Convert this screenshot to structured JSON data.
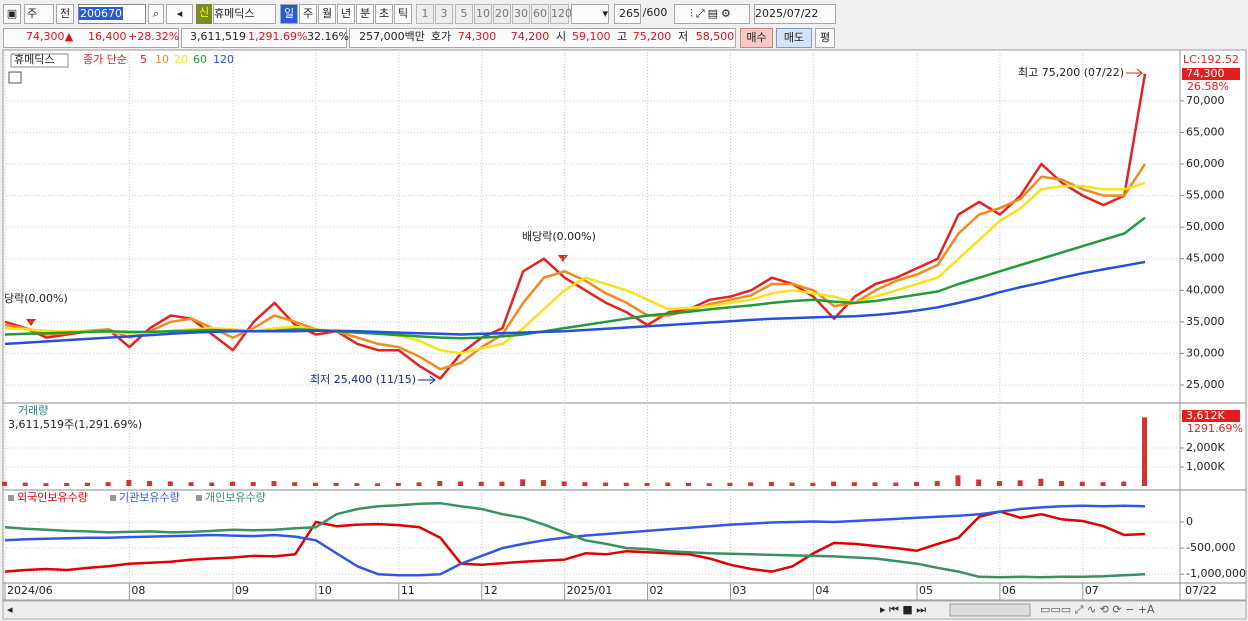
{
  "toolbar": {
    "period_type": "주",
    "prev": "전",
    "code": "200670",
    "new_badge": "신",
    "name": "휴메딕스",
    "periods": [
      "일",
      "주",
      "월",
      "년",
      "분",
      "초",
      "틱"
    ],
    "intervals": [
      "1",
      "3",
      "5",
      "10",
      "20",
      "30",
      "60",
      "120"
    ],
    "count": "265",
    "max_count": "/600",
    "date": "2025/07/22"
  },
  "info_bar": {
    "price": "74,300",
    "arrow": "▲",
    "change": "16,400",
    "change_pct": "+28.32%",
    "volume": "3,611,519",
    "volume_pct": "1,291.69%",
    "turnover": "32.16%",
    "amount": "257,000백만",
    "quote_label": "호가",
    "ask": "74,300",
    "bid": "74,200",
    "open_label": "시",
    "open": "59,100",
    "high_label": "고",
    "high": "75,200",
    "low_label": "저",
    "low": "58,500",
    "buy": "매수",
    "sell": "매도",
    "avg": "평"
  },
  "chart_data": [
    {
      "type": "line",
      "legend_name": "휴메딕스",
      "legend_label": "종가 단순",
      "series": [
        {
          "name": "5",
          "color": "#e3231f",
          "values": [
            35000,
            34000,
            32500,
            33000,
            33500,
            33800,
            31000,
            34000,
            36000,
            35500,
            33000,
            30500,
            35000,
            38000,
            34500,
            33000,
            33500,
            31500,
            30500,
            30500,
            28000,
            26000,
            30000,
            32500,
            34000,
            43000,
            45000,
            42000,
            40000,
            38000,
            36500,
            34500,
            36500,
            37000,
            38500,
            39000,
            40000,
            42000,
            41000,
            39000,
            35500,
            39000,
            41000,
            42000,
            43500,
            45000,
            52000,
            54000,
            52000,
            55000,
            60000,
            57000,
            55000,
            53500,
            55000,
            74300
          ]
        },
        {
          "name": "10",
          "color": "#f08a1c",
          "values": [
            34500,
            34000,
            33000,
            33200,
            33600,
            33800,
            32500,
            33500,
            35000,
            35500,
            34000,
            32500,
            34000,
            36000,
            35000,
            33800,
            33500,
            32500,
            31500,
            31000,
            29500,
            27500,
            28500,
            31000,
            33000,
            38000,
            42000,
            43000,
            41500,
            39500,
            38000,
            36000,
            36000,
            36800,
            37800,
            38500,
            39200,
            41000,
            41000,
            40000,
            37500,
            38000,
            40000,
            41500,
            42500,
            44000,
            49000,
            52000,
            53000,
            54500,
            58000,
            57500,
            56000,
            55000,
            55000,
            60000
          ]
        },
        {
          "name": "20",
          "color": "#f6e21c",
          "values": [
            34000,
            33800,
            33600,
            33500,
            33500,
            33400,
            33200,
            33300,
            33600,
            33800,
            34000,
            33800,
            33500,
            34000,
            34200,
            33800,
            33500,
            33500,
            33200,
            32800,
            32000,
            30500,
            30000,
            30800,
            31500,
            34000,
            37000,
            40000,
            42000,
            41000,
            40000,
            38500,
            37000,
            37200,
            37500,
            38000,
            38500,
            39500,
            40000,
            39500,
            39000,
            38000,
            39000,
            40000,
            41000,
            42000,
            45000,
            48000,
            51000,
            53000,
            56000,
            56500,
            56500,
            56000,
            56000,
            57000
          ]
        },
        {
          "name": "60",
          "color": "#239a3a",
          "values": [
            33000,
            33100,
            33200,
            33300,
            33400,
            33500,
            33400,
            33400,
            33500,
            33600,
            33700,
            33600,
            33500,
            33600,
            33800,
            33700,
            33500,
            33300,
            33100,
            32900,
            32700,
            32500,
            32400,
            32500,
            32700,
            33000,
            33500,
            34000,
            34500,
            35000,
            35500,
            36000,
            36300,
            36600,
            37000,
            37300,
            37600,
            38000,
            38300,
            38500,
            38200,
            38000,
            38300,
            38800,
            39300,
            39800,
            41000,
            42000,
            43000,
            44000,
            45000,
            46000,
            47000,
            48000,
            49000,
            51500
          ]
        },
        {
          "name": "120",
          "color": "#2452d6",
          "values": [
            31500,
            31700,
            31900,
            32100,
            32300,
            32500,
            32700,
            32900,
            33100,
            33300,
            33400,
            33500,
            33500,
            33500,
            33500,
            33600,
            33600,
            33500,
            33400,
            33300,
            33200,
            33100,
            33000,
            33100,
            33200,
            33300,
            33400,
            33500,
            33700,
            33900,
            34100,
            34300,
            34500,
            34700,
            34900,
            35100,
            35300,
            35500,
            35600,
            35700,
            35800,
            35900,
            36100,
            36400,
            36800,
            37300,
            38000,
            38800,
            39700,
            40500,
            41200,
            42000,
            42700,
            43300,
            43900,
            44500
          ]
        }
      ],
      "ylim": [
        22300,
        77750
      ],
      "yticks": [
        {
          "value": 25000,
          "label": "25,000"
        },
        {
          "value": 30000,
          "label": "30,000"
        },
        {
          "value": 35000,
          "label": "35,000"
        },
        {
          "value": 40000,
          "label": "40,000"
        },
        {
          "value": 45000,
          "label": "45,000"
        },
        {
          "value": 50000,
          "label": "50,000"
        },
        {
          "value": 55000,
          "label": "55,000"
        },
        {
          "value": 60000,
          "label": "60,000"
        },
        {
          "value": 65000,
          "label": "65,000"
        },
        {
          "value": 70000,
          "label": "70,000"
        }
      ],
      "annotations": {
        "high": "최고 75,200 (07/22)",
        "low": "최저 25,400 (11/15)",
        "ex_dividend": "배당락(0.00%)",
        "ex_dividend_left": "당락(0.00%)"
      },
      "axis_labels": {
        "lc": "LC:192.52",
        "last": "74,300",
        "pct": "26.58%"
      }
    },
    {
      "type": "bar",
      "title": "거래량",
      "summary": "3,611,519주(1,291.69%)",
      "color": "#d03434",
      "values": [
        220000,
        180000,
        150000,
        160000,
        170000,
        200000,
        320000,
        260000,
        240000,
        200000,
        180000,
        230000,
        210000,
        260000,
        200000,
        170000,
        160000,
        150000,
        140000,
        160000,
        190000,
        260000,
        240000,
        220000,
        230000,
        350000,
        310000,
        240000,
        200000,
        180000,
        170000,
        160000,
        180000,
        160000,
        150000,
        170000,
        190000,
        220000,
        180000,
        170000,
        230000,
        200000,
        190000,
        180000,
        210000,
        260000,
        560000,
        340000,
        260000,
        300000,
        380000,
        260000,
        220000,
        200000,
        230000,
        3611519
      ],
      "ylim": [
        0,
        4260000
      ],
      "yticks": [
        {
          "value": 1000000,
          "label": "1,000K"
        },
        {
          "value": 2000000,
          "label": "2,000K"
        }
      ],
      "axis_labels": {
        "last": "3,612K",
        "pct": "1291.69%"
      }
    },
    {
      "type": "line",
      "categories": [
        "2024/06",
        null,
        null,
        null,
        null,
        null,
        "08",
        null,
        null,
        null,
        null,
        "09",
        null,
        null,
        null,
        "10",
        null,
        null,
        null,
        "11",
        null,
        null,
        null,
        "12",
        null,
        null,
        null,
        "2025/01",
        null,
        null,
        null,
        "02",
        null,
        null,
        null,
        "03",
        null,
        null,
        null,
        "04",
        null,
        null,
        null,
        null,
        "05",
        null,
        null,
        null,
        "06",
        null,
        null,
        null,
        "07",
        null,
        null,
        null
      ],
      "last_date": "07/22",
      "series": [
        {
          "name": "외국인보유수량",
          "color": "#e00000",
          "values": [
            -950000,
            -920000,
            -900000,
            -920000,
            -880000,
            -850000,
            -800000,
            -780000,
            -760000,
            -720000,
            -700000,
            -680000,
            -650000,
            -660000,
            -620000,
            0,
            -80000,
            -50000,
            -40000,
            -60000,
            -100000,
            -300000,
            -800000,
            -820000,
            -790000,
            -760000,
            -740000,
            -720000,
            -600000,
            -620000,
            -560000,
            -580000,
            -600000,
            -620000,
            -700000,
            -820000,
            -900000,
            -950000,
            -850000,
            -600000,
            -400000,
            -420000,
            -460000,
            -500000,
            -550000,
            -420000,
            -300000,
            100000,
            200000,
            80000,
            150000,
            50000,
            20000,
            -80000,
            -250000,
            -230000
          ]
        },
        {
          "name": "기관보유수량",
          "color": "#3358e0",
          "values": [
            -350000,
            -330000,
            -320000,
            -310000,
            -300000,
            -300000,
            -290000,
            -280000,
            -270000,
            -260000,
            -250000,
            -260000,
            -270000,
            -250000,
            -280000,
            -350000,
            -600000,
            -850000,
            -1000000,
            -1020000,
            -1020000,
            -1000000,
            -800000,
            -650000,
            -500000,
            -420000,
            -350000,
            -300000,
            -260000,
            -230000,
            -200000,
            -170000,
            -140000,
            -110000,
            -80000,
            -50000,
            -30000,
            -10000,
            0,
            10000,
            0,
            20000,
            40000,
            60000,
            80000,
            100000,
            120000,
            150000,
            200000,
            250000,
            280000,
            300000,
            310000,
            300000,
            310000,
            300000
          ]
        },
        {
          "name": "개인보유수량",
          "color": "#3a9062",
          "values": [
            -100000,
            -130000,
            -150000,
            -170000,
            -180000,
            -200000,
            -190000,
            -180000,
            -200000,
            -190000,
            -170000,
            -150000,
            -160000,
            -150000,
            -120000,
            -100000,
            150000,
            250000,
            300000,
            320000,
            350000,
            360000,
            300000,
            250000,
            150000,
            80000,
            -50000,
            -200000,
            -350000,
            -420000,
            -500000,
            -520000,
            -560000,
            -580000,
            -600000,
            -610000,
            -620000,
            -630000,
            -640000,
            -650000,
            -660000,
            -680000,
            -700000,
            -750000,
            -800000,
            -880000,
            -950000,
            -1050000,
            -1060000,
            -1050000,
            -1060000,
            -1050000,
            -1050000,
            -1040000,
            -1020000,
            -1000000
          ]
        }
      ],
      "ylim": [
        -1150000,
        575000
      ],
      "yticks": [
        {
          "value": -1000000,
          "label": "-1,000,000"
        },
        {
          "value": -500000,
          "label": "-500,000"
        },
        0
      ]
    }
  ]
}
